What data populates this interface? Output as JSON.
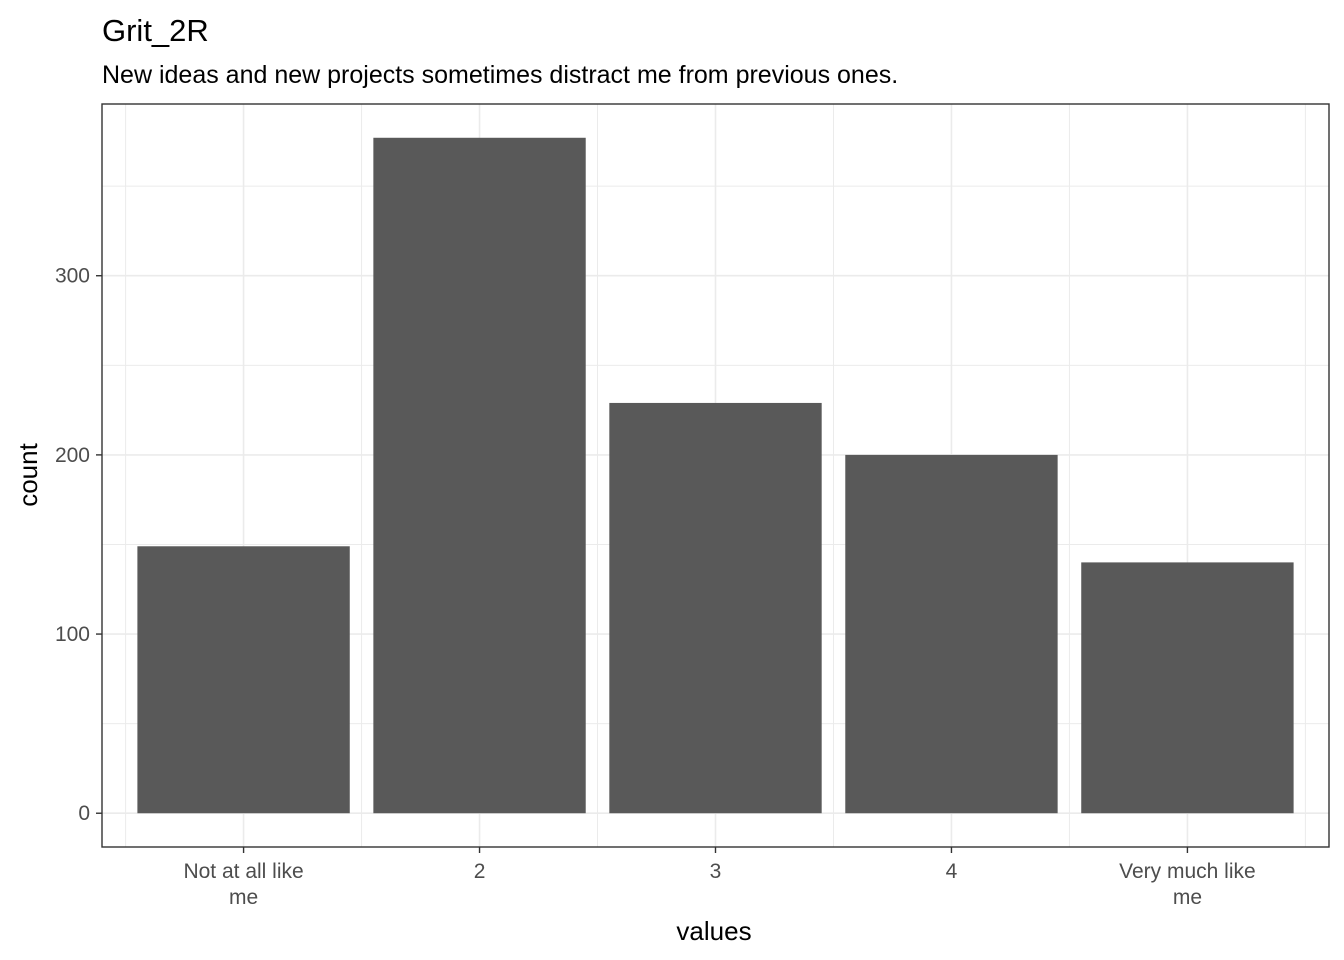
{
  "chart_data": {
    "type": "bar",
    "title": "Grit_2R",
    "subtitle": "New ideas and new projects sometimes distract me from previous ones.",
    "xlabel": "values",
    "ylabel": "count",
    "categories": [
      [
        "Not at all like",
        "me"
      ],
      [
        "2"
      ],
      [
        "3"
      ],
      [
        "4"
      ],
      [
        "Very much like",
        "me"
      ]
    ],
    "values": [
      149,
      377,
      229,
      200,
      140
    ],
    "yticks": [
      0,
      100,
      200,
      300
    ],
    "ylim": [
      -18.85,
      395.85
    ],
    "grid": true,
    "bar_color": "#595959",
    "grid_color": "#ebebeb",
    "panel_border_color": "#333333"
  }
}
